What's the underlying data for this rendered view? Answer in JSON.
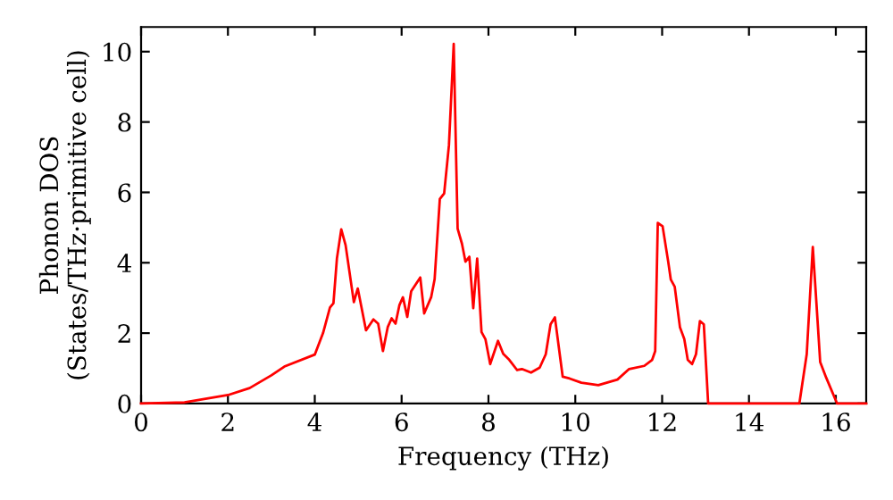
{
  "chart_data": {
    "type": "line",
    "xlabel": "Frequency (THz)",
    "ylabel": "Phonon DOS\n(States/THz·primitive cell)",
    "xlim": [
      0,
      16.7
    ],
    "ylim": [
      0,
      10.7
    ],
    "xticks": [
      0,
      2,
      4,
      6,
      8,
      10,
      12,
      14,
      16
    ],
    "yticks": [
      0,
      2,
      4,
      6,
      8,
      10
    ],
    "grid": false,
    "legend": false,
    "series": [
      {
        "color": "#ff0000",
        "x": [
          0,
          1,
          2,
          2.5,
          3,
          3.3,
          4,
          4.19,
          4.35,
          4.43,
          4.51,
          4.61,
          4.71,
          4.9,
          4.99,
          5.18,
          5.35,
          5.46,
          5.57,
          5.68,
          5.77,
          5.86,
          5.95,
          6.03,
          6.13,
          6.22,
          6.43,
          6.52,
          6.68,
          6.76,
          6.88,
          6.98,
          7.09,
          7.2,
          7.29,
          7.39,
          7.47,
          7.56,
          7.65,
          7.74,
          7.84,
          7.93,
          8.04,
          8.22,
          8.34,
          8.48,
          8.66,
          8.77,
          8.98,
          9.18,
          9.32,
          9.43,
          9.53,
          9.71,
          9.87,
          10.14,
          10.53,
          10.97,
          11.24,
          11.59,
          11.77,
          11.84,
          11.9,
          12.01,
          12.14,
          12.2,
          12.29,
          12.41,
          12.51,
          12.59,
          12.69,
          12.78,
          12.87,
          12.96,
          13.06,
          15.16,
          15.33,
          15.47,
          15.58,
          15.64,
          15.78,
          16.03,
          16.7
        ],
        "values": [
          0,
          0.03,
          0.24,
          0.44,
          0.8,
          1.05,
          1.39,
          2.0,
          2.73,
          2.85,
          4.12,
          4.95,
          4.5,
          2.88,
          3.27,
          2.08,
          2.39,
          2.27,
          1.49,
          2.17,
          2.42,
          2.27,
          2.8,
          3.02,
          2.46,
          3.19,
          3.58,
          2.56,
          3.02,
          3.53,
          5.81,
          5.97,
          7.34,
          10.22,
          4.97,
          4.54,
          4.03,
          4.17,
          2.71,
          4.12,
          2.03,
          1.83,
          1.12,
          1.78,
          1.41,
          1.24,
          0.95,
          0.98,
          0.88,
          1.02,
          1.4,
          2.25,
          2.45,
          0.76,
          0.71,
          0.59,
          0.52,
          0.68,
          0.98,
          1.07,
          1.24,
          1.49,
          5.13,
          5.04,
          4.03,
          3.52,
          3.32,
          2.17,
          1.83,
          1.24,
          1.12,
          1.4,
          2.34,
          2.25,
          0,
          0,
          1.4,
          4.45,
          2.34,
          1.18,
          0.73,
          0,
          0
        ]
      }
    ]
  }
}
